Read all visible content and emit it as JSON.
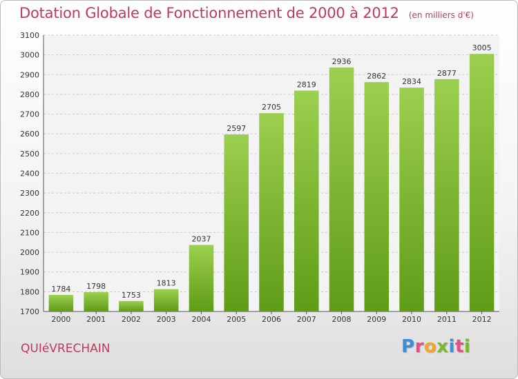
{
  "header": {
    "title": "Dotation Globale de Fonctionnement de 2000 à 2012",
    "unit": "(en milliers d'€)"
  },
  "footer": {
    "city": "QUIéVRECHAIN",
    "logo_letters": [
      "P",
      "r",
      "o",
      "x",
      "i",
      "t",
      "i"
    ],
    "logo_colors": [
      "#3a8fd8",
      "#e84c8a",
      "#f2a626",
      "#7ab82e",
      "#3a8fd8",
      "#e84c8a",
      "#7ab82e"
    ]
  },
  "chart_data": {
    "type": "bar",
    "categories": [
      "2000",
      "2001",
      "2002",
      "2003",
      "2004",
      "2005",
      "2006",
      "2007",
      "2008",
      "2009",
      "2010",
      "2011",
      "2012"
    ],
    "values": [
      1784,
      1798,
      1753,
      1813,
      2037,
      2597,
      2705,
      2819,
      2936,
      2862,
      2834,
      2877,
      3005
    ],
    "title": "Dotation Globale de Fonctionnement de 2000 à 2012",
    "ylim": [
      1700,
      3100
    ],
    "yticks": [
      1700,
      1800,
      1900,
      2000,
      2100,
      2200,
      2300,
      2400,
      2500,
      2600,
      2700,
      2800,
      2900,
      3000,
      3100
    ],
    "grid": true,
    "bar_color_top": "#9ccf4f",
    "bar_color_bottom": "#5f9c17"
  }
}
